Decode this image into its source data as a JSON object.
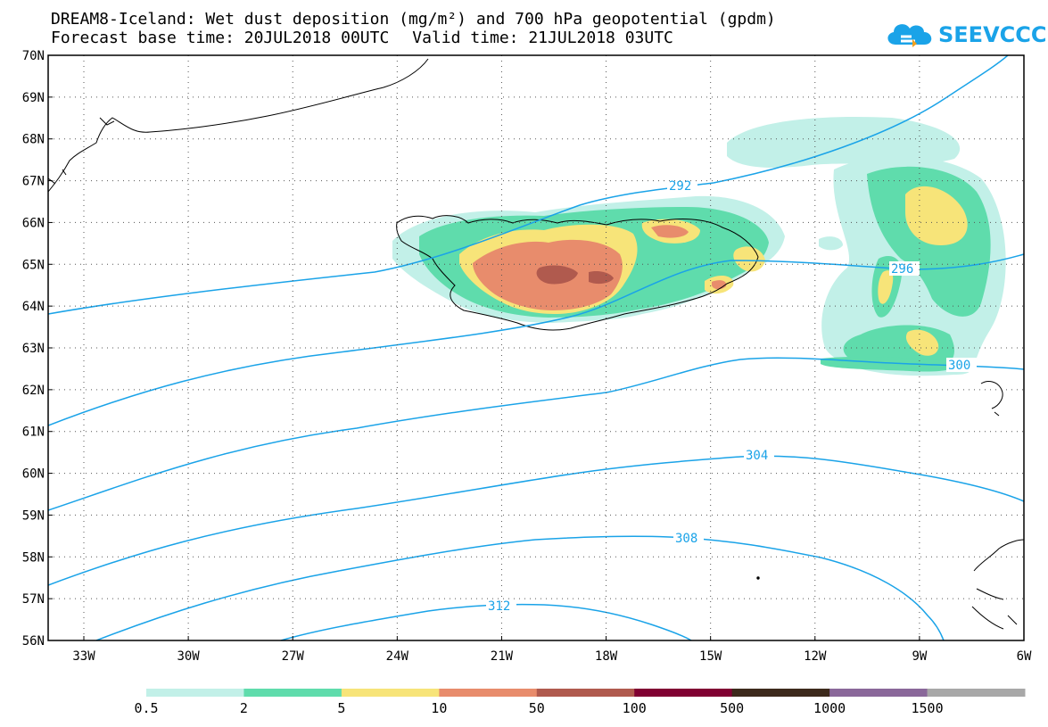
{
  "header": {
    "title_line1": "DREAM8-Iceland: Wet dust deposition (mg/m²) and 700 hPa geopotential (gpdm)",
    "base_time": "Forecast base time: 20JUL2018 00UTC",
    "valid_time": "Valid time: 21JUL2018 03UTC"
  },
  "logo": {
    "text": "SEEVCCC",
    "icon": "cloud-icon",
    "color": "#1aa3e8"
  },
  "map": {
    "lat_labels": [
      "70N",
      "69N",
      "68N",
      "67N",
      "66N",
      "65N",
      "64N",
      "63N",
      "62N",
      "61N",
      "60N",
      "59N",
      "58N",
      "57N",
      "56N"
    ],
    "lon_labels": [
      "33W",
      "30W",
      "27W",
      "24W",
      "21W",
      "18W",
      "15W",
      "12W",
      "9W",
      "6W"
    ],
    "contour_labels": [
      "292",
      "296",
      "300",
      "304",
      "308",
      "312"
    ],
    "contour_color": "#1aa3e8",
    "grid": "dotted"
  },
  "legend": {
    "labels": [
      "0.5",
      "2",
      "5",
      "10",
      "50",
      "100",
      "500",
      "1000",
      "1500"
    ],
    "colors": [
      "#c2f0e8",
      "#5fdcac",
      "#f7e479",
      "#e88c6c",
      "#b05a4e",
      "#800032",
      "#3d2a1c",
      "#8a689a",
      "#a8a8a8"
    ]
  }
}
